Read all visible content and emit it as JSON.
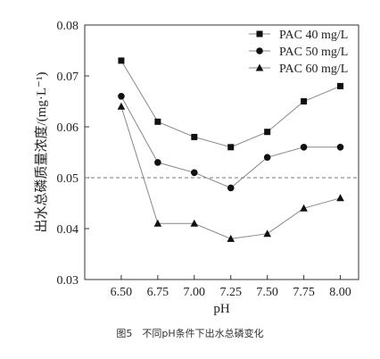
{
  "chart_data": {
    "type": "line",
    "xlabel": "pH",
    "ylabel": "出水总磷质量浓度/(mg·L⁻¹)",
    "x": [
      6.5,
      6.75,
      7.0,
      7.25,
      7.5,
      7.75,
      8.0
    ],
    "x_tick_labels": [
      "6.50",
      "6.75",
      "7.00",
      "7.25",
      "7.50",
      "7.75",
      "8.00"
    ],
    "xlim": [
      6.25,
      8.125
    ],
    "ylim": [
      0.03,
      0.08
    ],
    "y_ticks": [
      0.03,
      0.04,
      0.05,
      0.06,
      0.07,
      0.08
    ],
    "y_tick_labels": [
      "0.03",
      "0.04",
      "0.05",
      "0.06",
      "0.07",
      "0.08"
    ],
    "reference_line": {
      "y": 0.05,
      "style": "dashed"
    },
    "legend": "top-right",
    "grid": false,
    "series": [
      {
        "name": "PAC 40 mg/L",
        "marker": "square",
        "values": [
          0.073,
          0.061,
          0.058,
          0.056,
          0.059,
          0.065,
          0.068
        ]
      },
      {
        "name": "PAC 50 mg/L",
        "marker": "circle",
        "values": [
          0.066,
          0.053,
          0.051,
          0.048,
          0.054,
          0.056,
          0.056
        ]
      },
      {
        "name": "PAC 60 mg/L",
        "marker": "triangle",
        "values": [
          0.064,
          0.041,
          0.041,
          0.038,
          0.039,
          0.044,
          0.046
        ]
      }
    ],
    "colors": {
      "line": "#888888",
      "marker": "#111111",
      "axis": "#333333",
      "reference": "#777777"
    }
  },
  "caption": "图5　不同pH条件下出水总磷变化"
}
